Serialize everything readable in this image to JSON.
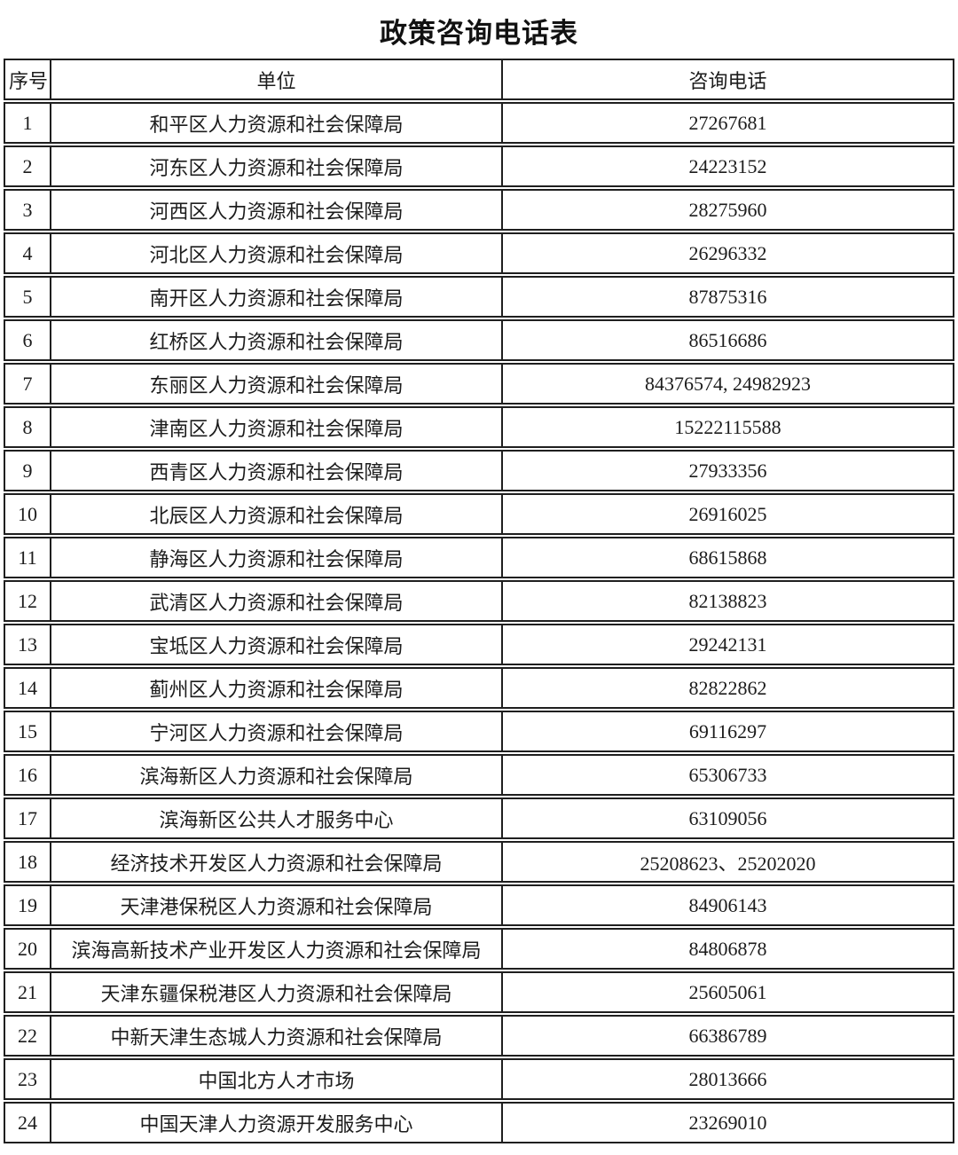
{
  "page": {
    "title": "政策咨询电话表"
  },
  "colors": {
    "background": "#ffffff",
    "border": "#1f1f1f",
    "text": "#1c1c1c"
  },
  "table": {
    "headers": [
      "序号",
      "单位",
      "咨询电话"
    ],
    "rows": [
      {
        "no": "1",
        "unit": "和平区人力资源和社会保障局",
        "phone": "27267681"
      },
      {
        "no": "2",
        "unit": "河东区人力资源和社会保障局",
        "phone": "24223152"
      },
      {
        "no": "3",
        "unit": "河西区人力资源和社会保障局",
        "phone": "28275960"
      },
      {
        "no": "4",
        "unit": "河北区人力资源和社会保障局",
        "phone": "26296332"
      },
      {
        "no": "5",
        "unit": "南开区人力资源和社会保障局",
        "phone": "87875316"
      },
      {
        "no": "6",
        "unit": "红桥区人力资源和社会保障局",
        "phone": "86516686"
      },
      {
        "no": "7",
        "unit": "东丽区人力资源和社会保障局",
        "phone": "84376574, 24982923"
      },
      {
        "no": "8",
        "unit": "津南区人力资源和社会保障局",
        "phone": "15222115588"
      },
      {
        "no": "9",
        "unit": "西青区人力资源和社会保障局",
        "phone": "27933356"
      },
      {
        "no": "10",
        "unit": "北辰区人力资源和社会保障局",
        "phone": "26916025"
      },
      {
        "no": "11",
        "unit": "静海区人力资源和社会保障局",
        "phone": "68615868"
      },
      {
        "no": "12",
        "unit": "武清区人力资源和社会保障局",
        "phone": "82138823"
      },
      {
        "no": "13",
        "unit": "宝坻区人力资源和社会保障局",
        "phone": "29242131"
      },
      {
        "no": "14",
        "unit": "蓟州区人力资源和社会保障局",
        "phone": "82822862"
      },
      {
        "no": "15",
        "unit": "宁河区人力资源和社会保障局",
        "phone": "69116297"
      },
      {
        "no": "16",
        "unit": "滨海新区人力资源和社会保障局",
        "phone": "65306733"
      },
      {
        "no": "17",
        "unit": "滨海新区公共人才服务中心",
        "phone": "63109056"
      },
      {
        "no": "18",
        "unit": "经济技术开发区人力资源和社会保障局",
        "phone": "25208623、25202020"
      },
      {
        "no": "19",
        "unit": "天津港保税区人力资源和社会保障局",
        "phone": "84906143"
      },
      {
        "no": "20",
        "unit": "滨海高新技术产业开发区人力资源和社会保障局",
        "phone": "84806878"
      },
      {
        "no": "21",
        "unit": "天津东疆保税港区人力资源和社会保障局",
        "phone": "25605061"
      },
      {
        "no": "22",
        "unit": "中新天津生态城人力资源和社会保障局",
        "phone": "66386789"
      },
      {
        "no": "23",
        "unit": "中国北方人才市场",
        "phone": "28013666"
      },
      {
        "no": "24",
        "unit": "中国天津人力资源开发服务中心",
        "phone": "23269010"
      }
    ]
  }
}
